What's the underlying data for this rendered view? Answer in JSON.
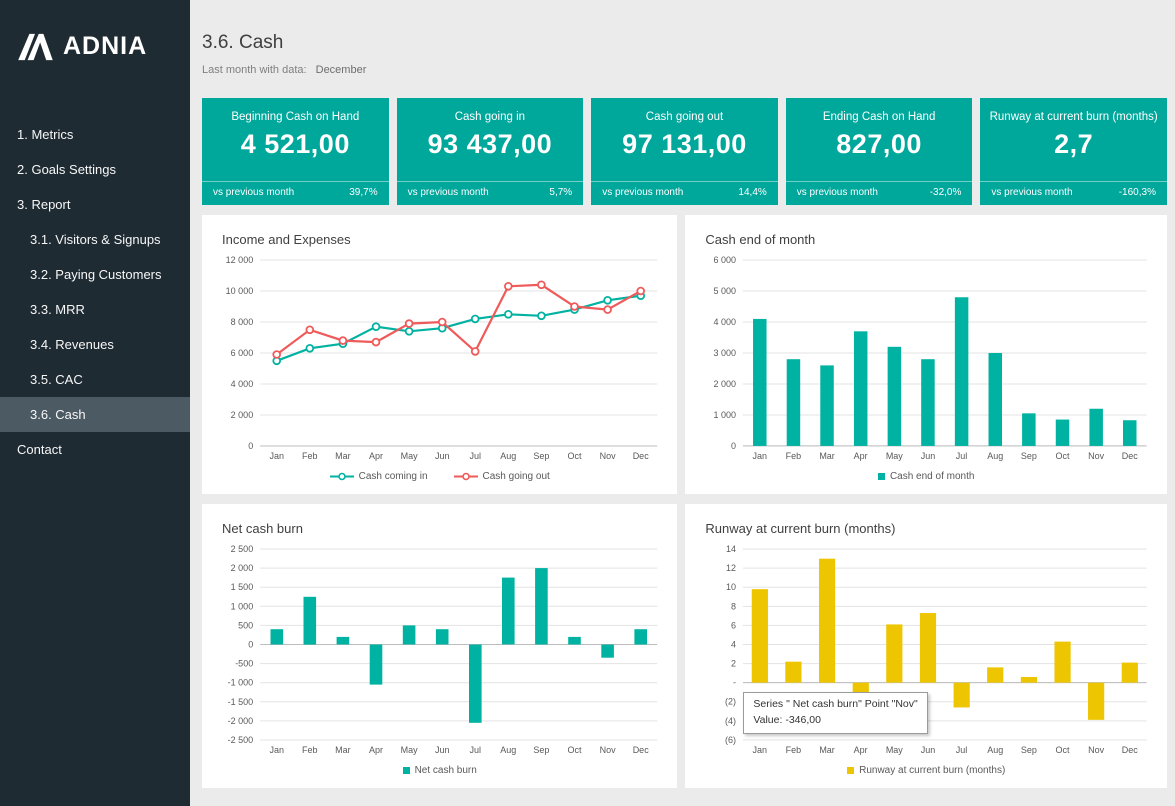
{
  "sidebar": {
    "logo_text": "ADNIA",
    "items": [
      {
        "label": "1. Metrics"
      },
      {
        "label": "2. Goals Settings"
      },
      {
        "label": "3. Report"
      },
      {
        "label": "3.1. Visitors & Signups"
      },
      {
        "label": "3.2. Paying Customers"
      },
      {
        "label": "3.3. MRR"
      },
      {
        "label": "3.4. Revenues"
      },
      {
        "label": "3.5. CAC"
      },
      {
        "label": "3.6. Cash"
      },
      {
        "label": "Contact"
      }
    ]
  },
  "header": {
    "title": "3.6. Cash",
    "subtitle_label": "Last month with data:",
    "subtitle_value": "December"
  },
  "kpis": [
    {
      "title": "Beginning Cash on Hand",
      "value": "4 521,00",
      "footer_label": "vs previous month",
      "footer_value": "39,7%"
    },
    {
      "title": "Cash going in",
      "value": "93 437,00",
      "footer_label": "vs previous month",
      "footer_value": "5,7%"
    },
    {
      "title": "Cash going out",
      "value": "97 131,00",
      "footer_label": "vs previous month",
      "footer_value": "14,4%"
    },
    {
      "title": "Ending Cash on Hand",
      "value": "827,00",
      "footer_label": "vs previous month",
      "footer_value": "-32,0%"
    },
    {
      "title": "Runway at current burn (months)",
      "value": "2,7",
      "footer_label": "vs previous month",
      "footer_value": "-160,3%"
    }
  ],
  "tooltip": {
    "line1": "Series \"  Net cash burn\" Point \"Nov\"",
    "line2": "Value: -346,00"
  },
  "colors": {
    "teal": "#00a79b",
    "chart_teal": "#00b2a1",
    "red": "#ef5a5a",
    "yellow": "#edc500",
    "sidebar": "#1f2b33",
    "sidebar_active": "#4c5a63"
  },
  "chart_data": [
    {
      "type": "line",
      "title": "Income and Expenses",
      "xlabel": "",
      "ylabel": "",
      "grid": true,
      "legend_position": "bottom",
      "categories": [
        "Jan",
        "Feb",
        "Mar",
        "Apr",
        "May",
        "Jun",
        "Jul",
        "Aug",
        "Sep",
        "Oct",
        "Nov",
        "Dec"
      ],
      "ylim": [
        0,
        12000
      ],
      "yticks": [
        {
          "v": 0,
          "label": "0"
        },
        {
          "v": 2000,
          "label": "2 000"
        },
        {
          "v": 4000,
          "label": "4 000"
        },
        {
          "v": 6000,
          "label": "6 000"
        },
        {
          "v": 8000,
          "label": "8 000"
        },
        {
          "v": 10000,
          "label": "10 000"
        },
        {
          "v": 12000,
          "label": "12 000"
        }
      ],
      "series": [
        {
          "name": "Cash coming in",
          "type": "line",
          "color": "#00b2a1",
          "values": [
            5500,
            6300,
            6600,
            7700,
            7400,
            7600,
            8200,
            8500,
            8400,
            8800,
            9400,
            9700
          ]
        },
        {
          "name": "Cash going out",
          "type": "line",
          "color": "#ef5a5a",
          "values": [
            5900,
            7500,
            6800,
            6700,
            7900,
            8000,
            6100,
            10300,
            10400,
            9000,
            8800,
            10000
          ]
        }
      ]
    },
    {
      "type": "bar",
      "title": "Cash end of month",
      "xlabel": "",
      "ylabel": "",
      "grid": true,
      "legend_position": "bottom",
      "bar_ratio": 0.4,
      "categories": [
        "Jan",
        "Feb",
        "Mar",
        "Apr",
        "May",
        "Jun",
        "Jul",
        "Aug",
        "Sep",
        "Oct",
        "Nov",
        "Dec"
      ],
      "ylim": [
        0,
        6000
      ],
      "yticks": [
        {
          "v": 0,
          "label": "0"
        },
        {
          "v": 1000,
          "label": "1 000"
        },
        {
          "v": 2000,
          "label": "2 000"
        },
        {
          "v": 3000,
          "label": "3 000"
        },
        {
          "v": 4000,
          "label": "4 000"
        },
        {
          "v": 5000,
          "label": "5 000"
        },
        {
          "v": 6000,
          "label": "6 000"
        }
      ],
      "series": [
        {
          "name": "Cash end of month",
          "type": "bar",
          "color": "#00b2a1",
          "values": [
            4100,
            2800,
            2600,
            3700,
            3200,
            2800,
            4800,
            3000,
            1050,
            850,
            1200,
            830
          ]
        }
      ]
    },
    {
      "type": "bar",
      "title": "Net cash burn",
      "xlabel": "",
      "ylabel": "",
      "grid": true,
      "legend_position": "bottom",
      "bar_ratio": 0.38,
      "categories": [
        "Jan",
        "Feb",
        "Mar",
        "Apr",
        "May",
        "Jun",
        "Jul",
        "Aug",
        "Sep",
        "Oct",
        "Nov",
        "Dec"
      ],
      "ylim": [
        -2500,
        2500
      ],
      "yticks": [
        {
          "v": -2500,
          "label": "-2 500"
        },
        {
          "v": -2000,
          "label": "-2 000"
        },
        {
          "v": -1500,
          "label": "-1 500"
        },
        {
          "v": -1000,
          "label": "-1 000"
        },
        {
          "v": -500,
          "label": "-500"
        },
        {
          "v": 0,
          "label": "0"
        },
        {
          "v": 500,
          "label": "500"
        },
        {
          "v": 1000,
          "label": "1 000"
        },
        {
          "v": 1500,
          "label": "1 500"
        },
        {
          "v": 2000,
          "label": "2 000"
        },
        {
          "v": 2500,
          "label": "2 500"
        }
      ],
      "series": [
        {
          "name": "Net cash burn",
          "type": "bar",
          "color": "#00b2a1",
          "values": [
            400,
            1250,
            200,
            -1050,
            500,
            400,
            -2050,
            1750,
            2000,
            200,
            -346,
            400
          ]
        }
      ]
    },
    {
      "type": "bar",
      "title": "Runway at current burn (months)",
      "xlabel": "",
      "ylabel": "",
      "grid": true,
      "legend_position": "bottom",
      "bar_ratio": 0.48,
      "categories": [
        "Jan",
        "Feb",
        "Mar",
        "Apr",
        "May",
        "Jun",
        "Jul",
        "Aug",
        "Sep",
        "Oct",
        "Nov",
        "Dec"
      ],
      "ylim": [
        -6,
        14
      ],
      "yticks": [
        {
          "v": -6,
          "label": "(6)"
        },
        {
          "v": -4,
          "label": "(4)"
        },
        {
          "v": -2,
          "label": "(2)"
        },
        {
          "v": 0,
          "label": "-"
        },
        {
          "v": 2,
          "label": "2"
        },
        {
          "v": 4,
          "label": "4"
        },
        {
          "v": 6,
          "label": "6"
        },
        {
          "v": 8,
          "label": "8"
        },
        {
          "v": 10,
          "label": "10"
        },
        {
          "v": 12,
          "label": "12"
        },
        {
          "v": 14,
          "label": "14"
        }
      ],
      "series": [
        {
          "name": "Runway at current burn (months)",
          "type": "bar",
          "color": "#edc500",
          "values": [
            9.8,
            2.2,
            13.0,
            -1.5,
            6.1,
            7.3,
            -2.6,
            1.6,
            0.6,
            4.3,
            -3.9,
            2.1
          ]
        }
      ]
    }
  ]
}
